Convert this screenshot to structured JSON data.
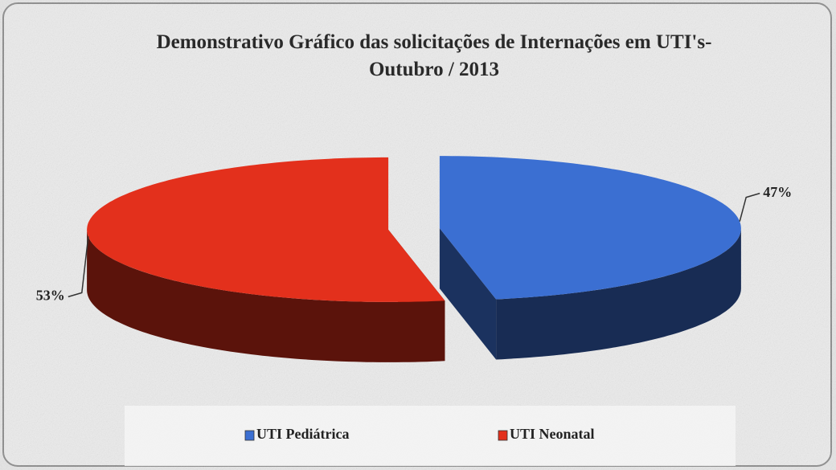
{
  "chart_data": {
    "type": "pie",
    "title": "Demonstrativo Gráfico das solicitações de Internações em UTI's- Outubro / 2013",
    "categories": [
      "UTI Pediátrica",
      "UTI Neonatal"
    ],
    "values": [
      47,
      53
    ],
    "value_labels": [
      "47%",
      "53%"
    ],
    "colors": [
      "#3b6fd2",
      "#e3301c"
    ],
    "legend": "bottom"
  }
}
